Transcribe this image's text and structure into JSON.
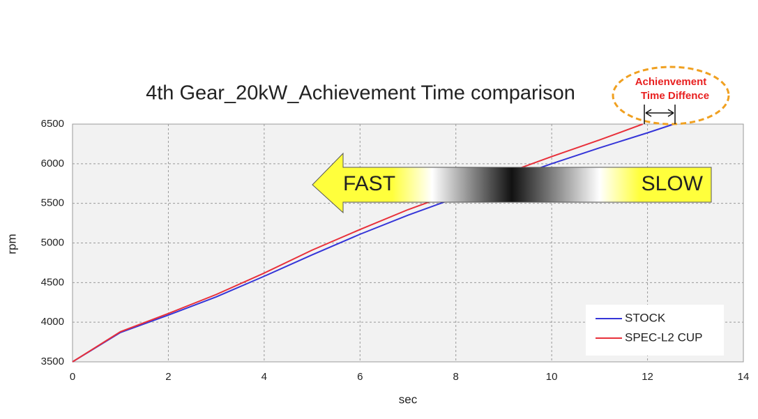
{
  "chart_data": {
    "type": "line",
    "title": "4th Gear_20kW_Achievement Time comparison",
    "x_label": "sec",
    "y_label": "rpm",
    "xlim": [
      0,
      14
    ],
    "xticks": [
      0,
      2,
      4,
      6,
      8,
      10,
      12,
      14
    ],
    "ylim": [
      3500,
      6500
    ],
    "yticks": [
      3500,
      4000,
      4500,
      5000,
      5500,
      6000,
      6500
    ],
    "grid": true,
    "legend": "lower right",
    "series": [
      {
        "name": "STOCK",
        "color": "#3535d8",
        "x": [
          0,
          1,
          2,
          3,
          4,
          5,
          6,
          7,
          8,
          9,
          10,
          11,
          12,
          12.55
        ],
        "values": [
          3500,
          3870,
          4090,
          4320,
          4580,
          4850,
          5110,
          5350,
          5570,
          5790,
          6000,
          6200,
          6390,
          6500
        ]
      },
      {
        "name": "SPEC-L2 CUP",
        "color": "#e8303a",
        "x": [
          0,
          1,
          2,
          3,
          4,
          5,
          6,
          7,
          8,
          9,
          10,
          11,
          11.9
        ],
        "values": [
          3500,
          3880,
          4110,
          4350,
          4620,
          4910,
          5170,
          5420,
          5640,
          5870,
          6090,
          6300,
          6500
        ]
      }
    ],
    "annotations": {
      "fast": "FAST",
      "slow": "SLOW",
      "difference_line1": "Achienvement",
      "difference_line2": "Time Diffence"
    }
  }
}
